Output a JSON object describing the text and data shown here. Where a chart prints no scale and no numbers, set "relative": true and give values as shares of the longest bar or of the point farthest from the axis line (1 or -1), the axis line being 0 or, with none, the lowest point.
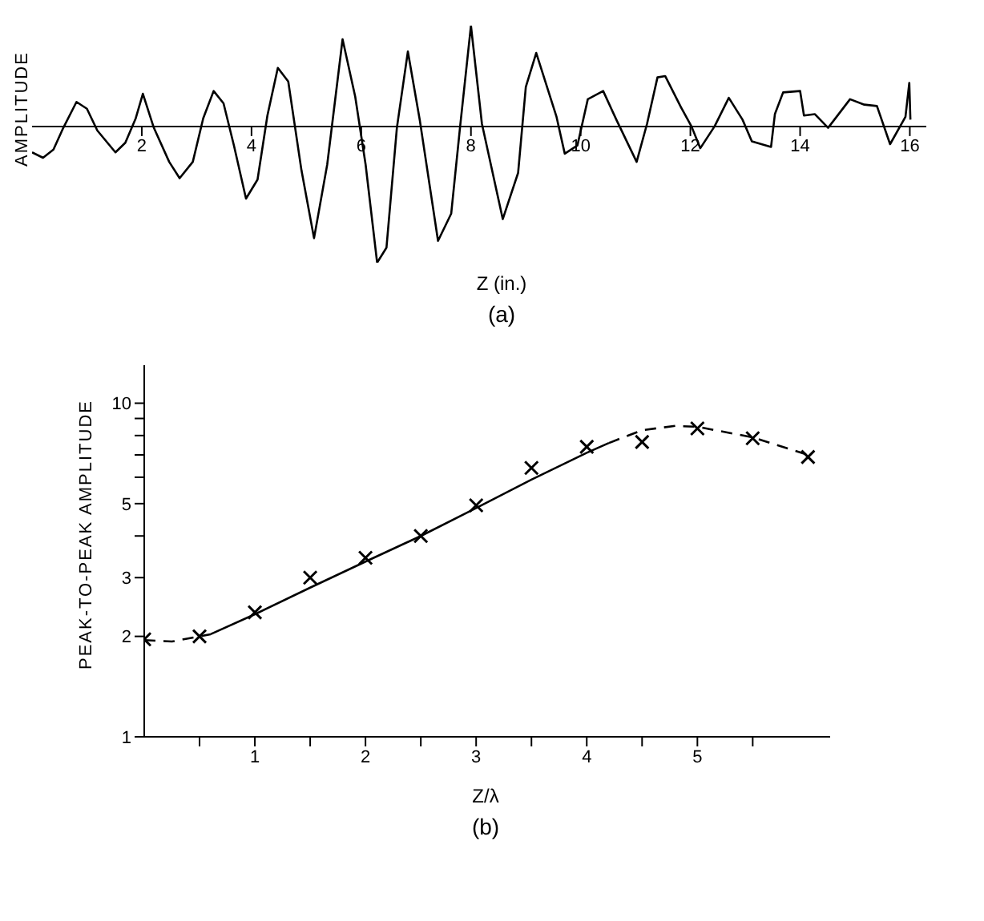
{
  "chart_data": [
    {
      "type": "line",
      "title": "(a)",
      "xlabel": "Z (in.)",
      "ylabel": "AMPLITUDE",
      "relative": true,
      "xlim": [
        0,
        16.3
      ],
      "xticks": [
        2,
        4,
        6,
        8,
        10,
        12,
        14,
        16
      ],
      "series": [
        {
          "color": "#000000",
          "line_style": "solid",
          "x": [
            0,
            0.2,
            0.39,
            0.57,
            0.81,
            1.0,
            1.19,
            1.52,
            1.7,
            1.89,
            2.02,
            2.22,
            2.5,
            2.69,
            2.93,
            3.12,
            3.31,
            3.49,
            3.68,
            3.9,
            4.11,
            4.29,
            4.48,
            4.67,
            4.91,
            5.14,
            5.38,
            5.66,
            5.89,
            6.08,
            6.29,
            6.46,
            6.65,
            6.85,
            7.07,
            7.4,
            7.64,
            7.8,
            8.0,
            8.2,
            8.58,
            8.86,
            9.0,
            9.19,
            9.56,
            9.71,
            9.94,
            10.13,
            10.41,
            10.65,
            11.02,
            11.21,
            11.4,
            11.54,
            11.83,
            12.02,
            12.18,
            12.44,
            12.7,
            12.95,
            13.12,
            13.47,
            13.54,
            13.69,
            14.0,
            14.07,
            14.27,
            14.51,
            14.91,
            15.17,
            15.4,
            15.64,
            15.92,
            15.99,
            16.01
          ],
          "values": [
            -0.19,
            -0.23,
            -0.17,
            -0.01,
            0.18,
            0.13,
            -0.03,
            -0.19,
            -0.12,
            0.06,
            0.24,
            -0.01,
            -0.26,
            -0.38,
            -0.26,
            0.06,
            0.26,
            0.17,
            -0.14,
            -0.53,
            -0.39,
            0.08,
            0.43,
            0.33,
            -0.32,
            -0.82,
            -0.28,
            0.64,
            0.22,
            -0.28,
            -1.0,
            -0.89,
            -0.01,
            0.55,
            0.04,
            -0.84,
            -0.64,
            -0.01,
            0.74,
            0.02,
            -0.68,
            -0.34,
            0.29,
            0.54,
            0.07,
            -0.2,
            -0.14,
            0.2,
            0.26,
            0.05,
            -0.26,
            0.02,
            0.36,
            0.37,
            0.14,
            0,
            -0.16,
            0,
            0.21,
            0.05,
            -0.11,
            -0.15,
            0.09,
            0.25,
            0.26,
            0.08,
            0.09,
            -0.01,
            0.2,
            0.16,
            0.15,
            -0.13,
            0.07,
            0.32,
            0.05
          ]
        }
      ]
    },
    {
      "type": "scatter",
      "title": "(b)",
      "xlabel": "Z/λ",
      "ylabel": "PEAK-TO-PEAK AMPLITUDE",
      "log": "y",
      "xlim": [
        0,
        6.2
      ],
      "ylim": [
        1,
        13
      ],
      "xticks": [
        {
          "value": 0.5,
          "label": null
        },
        1,
        {
          "value": 1.5,
          "label": null
        },
        2,
        {
          "value": 2.5,
          "label": null
        },
        3,
        {
          "value": 3.5,
          "label": null
        },
        4,
        {
          "value": 4.5,
          "label": null
        },
        5,
        {
          "value": 5.5,
          "label": null
        }
      ],
      "yticks": [
        1,
        2,
        3,
        {
          "value": 4,
          "label": null
        },
        5,
        {
          "value": 6,
          "label": null
        },
        {
          "value": 7,
          "label": null
        },
        {
          "value": 8,
          "label": null
        },
        {
          "value": 9,
          "label": null
        },
        10
      ],
      "series": [
        {
          "marker": "cross",
          "color": "#000000",
          "x": [
            0,
            0.5,
            1,
            1.5,
            2,
            2.5,
            3,
            3.5,
            4,
            4.5,
            5,
            5.5,
            6
          ],
          "values": [
            1.96,
            2.0,
            2.36,
            3.0,
            3.44,
            4.0,
            4.94,
            6.4,
            7.4,
            7.65,
            8.4,
            7.85,
            6.9
          ]
        },
        {
          "type": "line",
          "line_style": "dashed",
          "color": "#000000",
          "x": [
            0,
            0.25,
            0.5,
            0.6
          ],
          "values": [
            1.95,
            1.93,
            2.0,
            2.03
          ]
        },
        {
          "type": "line",
          "line_style": "solid",
          "color": "#000000",
          "x": [
            0.6,
            1,
            1.5,
            2,
            2.5,
            3,
            3.5,
            4,
            4.2
          ],
          "values": [
            2.03,
            2.33,
            2.8,
            3.35,
            4.0,
            4.85,
            5.9,
            7.1,
            7.6
          ]
        },
        {
          "type": "line",
          "line_style": "dashed",
          "color": "#000000",
          "x": [
            4.2,
            4.5,
            4.8,
            5,
            5.5,
            6
          ],
          "values": [
            7.6,
            8.3,
            8.55,
            8.5,
            7.9,
            7.0
          ]
        }
      ]
    }
  ]
}
